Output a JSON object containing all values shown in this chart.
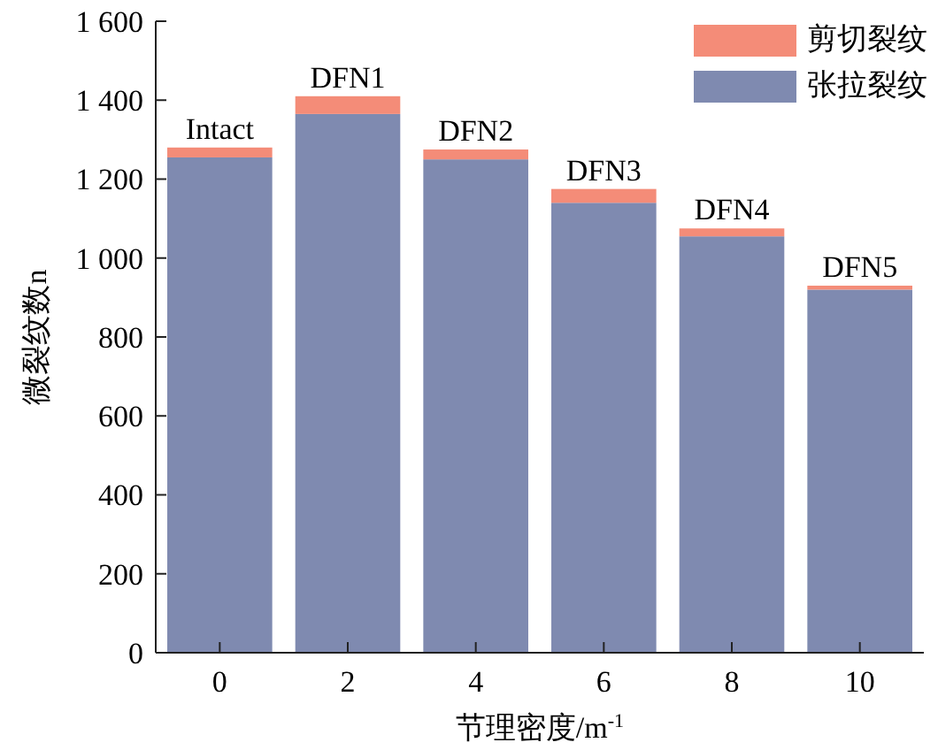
{
  "chart_data": {
    "type": "bar",
    "stacked": true,
    "xlabel": "节理密度/m$^{-1}$",
    "ylabel": "微裂纹数n",
    "categories": [
      "0",
      "2",
      "4",
      "6",
      "8",
      "10"
    ],
    "series": [
      {
        "name": "张拉裂纹",
        "color": "#7f8ab0",
        "values": [
          1255,
          1365,
          1250,
          1140,
          1055,
          920
        ]
      },
      {
        "name": "剪切裂纹",
        "color": "#f48c78",
        "values": [
          25,
          45,
          25,
          35,
          20,
          10
        ]
      }
    ],
    "ylim": [
      0,
      1600
    ],
    "yticks": [
      0,
      {
        "value": 200,
        "label": "200"
      },
      {
        "value": 400,
        "label": "400"
      },
      {
        "value": 600,
        "label": "600"
      },
      {
        "value": 800,
        "label": "800"
      },
      {
        "value": 1000,
        "label": "1 000"
      },
      {
        "value": 1200,
        "label": "1 200"
      },
      {
        "value": 1400,
        "label": "1 400"
      },
      {
        "value": 1600,
        "label": "1 600"
      }
    ],
    "annotations": [
      {
        "text": "Intact",
        "x": "0",
        "y": 1280
      },
      {
        "text": "DFN1",
        "x": "2",
        "y": 1410
      },
      {
        "text": "DFN2",
        "x": "4",
        "y": 1275
      },
      {
        "text": "DFN3",
        "x": "6",
        "y": 1175
      },
      {
        "text": "DFN4",
        "x": "8",
        "y": 1075
      },
      {
        "text": "DFN5",
        "x": "10",
        "y": 930
      }
    ],
    "legend": "top right"
  }
}
